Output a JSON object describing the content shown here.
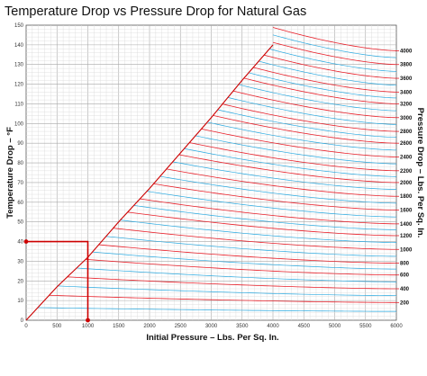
{
  "chart_data": {
    "type": "line",
    "title": "Temperature Drop vs Pressure Drop for Natural Gas",
    "xlabel": "Initial Pressure – Lbs. Per Sq. In.",
    "ylabel": "Temperature Drop – °F",
    "y2label": "Pressure Drop – Lbs. Per Sq. In.",
    "xlim": [
      0,
      6000
    ],
    "ylim": [
      0,
      150
    ],
    "x_ticks": [
      "0",
      "500",
      "1000",
      "1500",
      "2000",
      "2500",
      "3000",
      "3500",
      "4000",
      "4500",
      "5000",
      "5500",
      "6000"
    ],
    "y_ticks": [
      "0",
      "10",
      "20",
      "30",
      "40",
      "50",
      "60",
      "70",
      "80",
      "90",
      "100",
      "110",
      "120",
      "130",
      "140",
      "150"
    ],
    "y2_ticks": [
      "200",
      "400",
      "600",
      "800",
      "1000",
      "1200",
      "1400",
      "1600",
      "1800",
      "2000",
      "2200",
      "2400",
      "2600",
      "2800",
      "3000",
      "3200",
      "3400",
      "3600",
      "3800",
      "4000"
    ],
    "grid": true,
    "boundary_line": {
      "color": "#cc0000",
      "x": [
        0,
        500,
        1000,
        1500,
        2000,
        2500,
        3000,
        3500,
        4000
      ],
      "y": [
        0,
        17,
        32,
        50,
        67,
        85,
        103,
        122,
        140
      ]
    },
    "pressure_drop_curves": {
      "red_levels": [
        200,
        400,
        600,
        800,
        1000,
        1200,
        1400,
        1600,
        1800,
        2000,
        2200,
        2400,
        2600,
        2800,
        3000,
        3200,
        3400,
        3600,
        3800,
        4000
      ],
      "red_color": "#e8202a",
      "blue_color": "#29a9e0",
      "right_edge_temp_drop": [
        9,
        16,
        23,
        29,
        36,
        43,
        49,
        56,
        63,
        70,
        76,
        83,
        90,
        96,
        103,
        110,
        116,
        123,
        130,
        137
      ],
      "temp_drop_at_x": 6000
    },
    "example_path": {
      "color": "#cc0000",
      "initial_pressure": 1000,
      "temperature_drop": 40,
      "pressure_drop": 1000
    }
  }
}
